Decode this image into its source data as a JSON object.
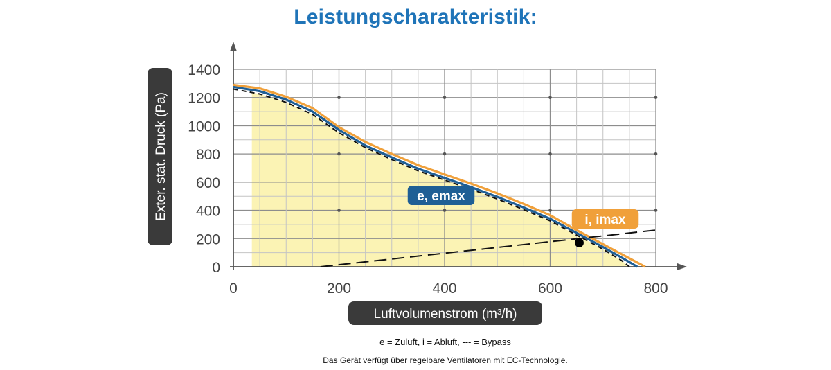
{
  "title": "Leistungscharakteristik:",
  "notes": {
    "legend_explanation": "e = Zuluft, i = Abluft, --- = Bypass",
    "ec_note": "Das Gerät verfügt über regelbare Ventilatoren mit EC-Technologie."
  },
  "colors": {
    "title": "#1f74b8",
    "series_i": "#f0a03a",
    "series_e": "#1f5f95",
    "fill": "#fbf3b4",
    "label_dark": "#3a3a3a"
  },
  "chart_data": {
    "type": "line",
    "title": "Leistungscharakteristik:",
    "xlabel": "Luftvolumenstrom (m³/h)",
    "ylabel": "Exter. stat. Druck (Pa)",
    "xlim": [
      0,
      800
    ],
    "ylim": [
      0,
      1400
    ],
    "x_ticks": [
      0,
      200,
      400,
      600,
      800
    ],
    "y_ticks": [
      0,
      200,
      400,
      600,
      800,
      1000,
      1200,
      1400
    ],
    "grid": true,
    "series": [
      {
        "name": "i, imax",
        "style": "solid",
        "color": "#f0a03a",
        "x": [
          0,
          50,
          100,
          150,
          200,
          250,
          300,
          350,
          400,
          450,
          500,
          550,
          600,
          650,
          700,
          750,
          780
        ],
        "y": [
          1290,
          1265,
          1205,
          1125,
          990,
          885,
          800,
          720,
          655,
          590,
          520,
          445,
          365,
          260,
          160,
          60,
          0
        ]
      },
      {
        "name": "e, emax",
        "style": "solid",
        "color": "#1f5f95",
        "x": [
          0,
          50,
          100,
          150,
          200,
          250,
          300,
          350,
          400,
          450,
          500,
          550,
          600,
          650,
          700,
          740,
          765
        ],
        "y": [
          1275,
          1245,
          1185,
          1100,
          970,
          860,
          775,
          695,
          630,
          565,
          495,
          420,
          340,
          240,
          140,
          55,
          0
        ]
      },
      {
        "name": "",
        "style": "short-dash",
        "color": "#111111",
        "x": [
          0,
          50,
          100,
          150,
          200,
          250,
          300,
          350,
          400,
          450,
          500,
          550,
          600,
          650,
          700,
          735,
          750
        ],
        "y": [
          1260,
          1225,
          1165,
          1080,
          950,
          845,
          760,
          680,
          615,
          550,
          480,
          405,
          325,
          225,
          125,
          45,
          0
        ]
      },
      {
        "name": "Bypass",
        "style": "long-dash",
        "color": "#111111",
        "x": [
          165,
          800
        ],
        "y": [
          0,
          260
        ]
      }
    ],
    "operating_point": {
      "x": 655,
      "y": 170
    },
    "shaded_area": {
      "x_start": 35
    }
  }
}
